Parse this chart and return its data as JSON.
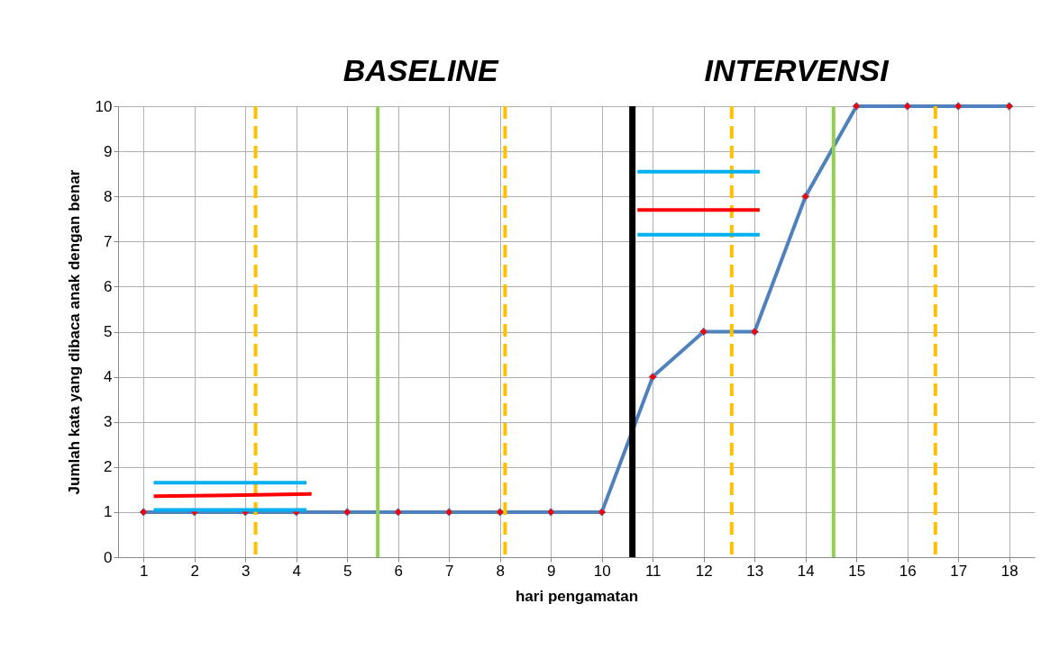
{
  "chart_data": {
    "type": "line",
    "xlabel": "hari pengamatan",
    "ylabel": "Jumlah kata yang dibaca anak dengan benar",
    "x": [
      1,
      2,
      3,
      4,
      5,
      6,
      7,
      8,
      9,
      10,
      11,
      12,
      13,
      14,
      15,
      16,
      17,
      18
    ],
    "xlim": [
      0.5,
      18.5
    ],
    "xticks": [
      1,
      2,
      3,
      4,
      5,
      6,
      7,
      8,
      9,
      10,
      11,
      12,
      13,
      14,
      15,
      16,
      17,
      18
    ],
    "ylim": [
      0,
      10
    ],
    "yticks": [
      0,
      1,
      2,
      3,
      4,
      5,
      6,
      7,
      8,
      9,
      10
    ],
    "grid": true,
    "marker": "diamond",
    "series": [
      {
        "color": "#4f81bd",
        "values": [
          1,
          1,
          1,
          1,
          1,
          1,
          1,
          1,
          1,
          1,
          4,
          5,
          5,
          8,
          10,
          10,
          10,
          10
        ]
      },
      {
        "color": "#00b0f0",
        "marker": "none",
        "x": [
          1.2,
          4.2
        ],
        "values": [
          1.65,
          1.65
        ]
      },
      {
        "color": "#00b0f0",
        "marker": "none",
        "x": [
          1.2,
          4.2
        ],
        "values": [
          1.05,
          1.05
        ]
      },
      {
        "color": "#ff0000",
        "marker": "none",
        "x": [
          1.2,
          4.3
        ],
        "values": [
          1.35,
          1.4
        ]
      },
      {
        "color": "#00b0f0",
        "marker": "none",
        "x": [
          10.7,
          13.1
        ],
        "values": [
          8.55,
          8.55
        ]
      },
      {
        "color": "#ff0000",
        "marker": "none",
        "x": [
          10.7,
          13.1
        ],
        "values": [
          7.7,
          7.7
        ]
      },
      {
        "color": "#00b0f0",
        "marker": "none",
        "x": [
          10.7,
          13.1
        ],
        "values": [
          7.15,
          7.15
        ]
      }
    ],
    "ref_lines": [
      {
        "axis": "x",
        "value": 3.2,
        "color": "#ffc000",
        "line_style": "dashed"
      },
      {
        "axis": "x",
        "value": 5.6,
        "color": "#92d050",
        "line_style": "solid"
      },
      {
        "axis": "x",
        "value": 8.1,
        "color": "#ffc000",
        "line_style": "dashed"
      },
      {
        "axis": "x",
        "value": 10.6,
        "color": "#000000",
        "line_style": "solid"
      },
      {
        "axis": "x",
        "value": 12.55,
        "color": "#ffc000",
        "line_style": "dashed"
      },
      {
        "axis": "x",
        "value": 14.55,
        "color": "#92d050",
        "line_style": "solid"
      },
      {
        "axis": "x",
        "value": 16.55,
        "color": "#ffc000",
        "line_style": "dashed"
      }
    ],
    "annotations": [
      "BASELINE",
      "INTERVENSI"
    ]
  }
}
